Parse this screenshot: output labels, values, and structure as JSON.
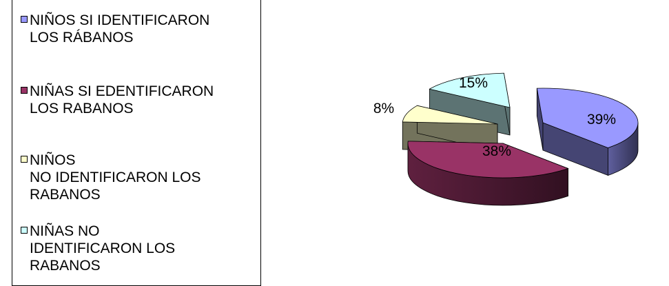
{
  "chart_data": {
    "type": "pie",
    "style": "3d-exploded",
    "legend_position": "left",
    "series": [
      {
        "label": "NIÑOS SI IDENTIFICARON\nLOS RÁBANOS",
        "value": 39,
        "value_label": "39%",
        "color": "#9999FF"
      },
      {
        "label": "NIÑAS SI EDENTIFICARON\nLOS RABANOS",
        "value": 38,
        "value_label": "38%",
        "color": "#993366"
      },
      {
        "label": "NIÑOS\n NO IDENTIFICARON LOS\nRABANOS",
        "value": 8,
        "value_label": "8%",
        "color": "#FFFFCC"
      },
      {
        "label": "NIÑAS NO\nIDENTIFICARON LOS\nRABANOS",
        "value": 15,
        "value_label": "15%",
        "color": "#CCFFFF"
      }
    ]
  }
}
